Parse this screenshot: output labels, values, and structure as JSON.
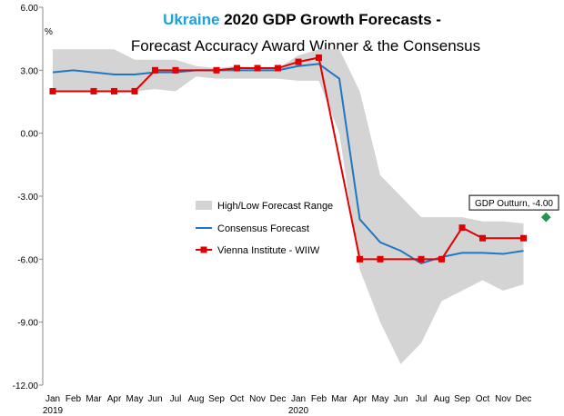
{
  "chart_data": {
    "type": "line",
    "title_highlight": "Ukraine",
    "title_rest": " 2020 GDP Growth Forecasts -",
    "subtitle": "Forecast Accuracy Award Winner & the Consensus",
    "ylabel": "%",
    "ylim": [
      -12,
      6
    ],
    "yticks": [
      6,
      3,
      0,
      -3,
      -6,
      -9,
      -12
    ],
    "ytick_labels": [
      "6.00",
      "3.00",
      "0.00",
      "-3.00",
      "-6.00",
      "-9.00",
      "-12.00"
    ],
    "categories": [
      "Jan",
      "Feb",
      "Mar",
      "Apr",
      "May",
      "Jun",
      "Jul",
      "Aug",
      "Sep",
      "Oct",
      "Nov",
      "Dec",
      "Jan",
      "Feb",
      "Mar",
      "Apr",
      "May",
      "Jun",
      "Jul",
      "Aug",
      "Sep",
      "Oct",
      "Nov",
      "Dec"
    ],
    "year_labels": [
      {
        "index": 0,
        "label": "2019"
      },
      {
        "index": 12,
        "label": "2020"
      }
    ],
    "range": {
      "name": "High/Low Forecast Range",
      "color": "#d4d4d4",
      "high": [
        4.0,
        4.0,
        4.0,
        4.0,
        3.5,
        3.5,
        3.5,
        3.2,
        3.1,
        3.2,
        3.1,
        3.1,
        3.7,
        4.0,
        4.0,
        2.0,
        -2.0,
        -3.0,
        -4.0,
        -4.0,
        -4.0,
        -4.2,
        -4.2,
        -4.3
      ],
      "low": [
        2.0,
        2.0,
        2.0,
        2.0,
        2.0,
        2.1,
        2.0,
        2.7,
        2.6,
        2.6,
        2.6,
        2.6,
        2.5,
        2.5,
        0.0,
        -6.5,
        -9.0,
        -11.0,
        -10.0,
        -8.0,
        -7.5,
        -7.0,
        -7.5,
        -7.2
      ]
    },
    "series": [
      {
        "name": "Consensus Forecast",
        "color": "#1f77c4",
        "marker": "none",
        "values": [
          2.9,
          3.0,
          2.9,
          2.8,
          2.8,
          2.9,
          2.9,
          3.0,
          3.0,
          3.0,
          3.0,
          3.0,
          3.2,
          3.3,
          2.6,
          -4.1,
          -5.2,
          -5.6,
          -6.2,
          -5.9,
          -5.7,
          -5.7,
          -5.75,
          -5.6
        ]
      },
      {
        "name": "Vienna Institute - WIIW",
        "color": "#e00000",
        "marker": "square",
        "values": [
          2.0,
          null,
          2.0,
          2.0,
          2.0,
          3.0,
          3.0,
          null,
          3.0,
          3.1,
          3.1,
          3.1,
          3.4,
          3.6,
          null,
          -6.0,
          -6.0,
          null,
          -6.0,
          -6.0,
          -4.5,
          -5.0,
          null,
          -5.0
        ]
      }
    ],
    "annotation": {
      "label": "GDP Outturn, -4.00",
      "index": 24.1,
      "value": -4.0,
      "color": "#1e9a4a"
    },
    "legend_position": "center"
  }
}
